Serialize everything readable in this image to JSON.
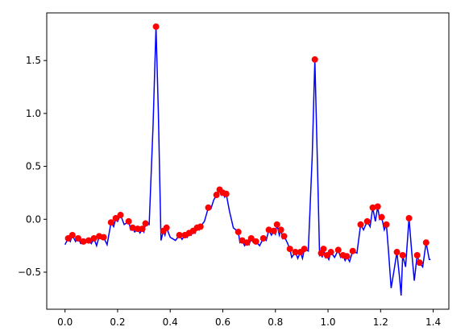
{
  "chart_data": {
    "type": "line",
    "xlim": [
      -0.0695,
      1.4595
    ],
    "ylim": [
      -0.85,
      1.95
    ],
    "xticks": [
      {
        "value": 0,
        "label": "0.0"
      },
      0.2,
      0.4,
      0.6,
      0.8,
      {
        "value": 1,
        "label": "1.0"
      },
      1.2,
      1.4
    ],
    "yticks": [
      {
        "value": -0.5,
        "label": "−0.5"
      },
      {
        "value": 0,
        "label": "0.0"
      },
      0.5,
      {
        "value": 1,
        "label": "1.0"
      },
      1.5
    ],
    "series": [
      {
        "type": "line",
        "color": "#0000ff",
        "x": [
          0.0,
          0.012,
          0.02,
          0.028,
          0.04,
          0.05,
          0.06,
          0.07,
          0.08,
          0.09,
          0.1,
          0.11,
          0.12,
          0.13,
          0.14,
          0.147,
          0.16,
          0.175,
          0.185,
          0.193,
          0.2,
          0.211,
          0.225,
          0.242,
          0.25,
          0.257,
          0.265,
          0.276,
          0.285,
          0.294,
          0.3,
          0.306,
          0.32,
          0.335,
          0.346,
          0.355,
          0.365,
          0.374,
          0.38,
          0.386,
          0.4,
          0.42,
          0.435,
          0.445,
          0.456,
          0.465,
          0.472,
          0.48,
          0.487,
          0.495,
          0.502,
          0.51,
          0.515,
          0.53,
          0.545,
          0.555,
          0.565,
          0.576,
          0.588,
          0.595,
          0.6,
          0.607,
          0.613,
          0.625,
          0.64,
          0.659,
          0.665,
          0.674,
          0.683,
          0.692,
          0.7,
          0.708,
          0.716,
          0.726,
          0.74,
          0.754,
          0.765,
          0.775,
          0.785,
          0.794,
          0.8,
          0.806,
          0.815,
          0.821,
          0.828,
          0.833,
          0.845,
          0.855,
          0.862,
          0.876,
          0.885,
          0.895,
          0.903,
          0.91,
          0.925,
          0.94,
          0.95,
          0.96,
          0.968,
          0.974,
          0.978,
          0.983,
          0.99,
          0.996,
          1.003,
          1.011,
          1.025,
          1.039,
          1.048,
          1.057,
          1.065,
          1.072,
          1.082,
          1.094,
          1.11,
          1.124,
          1.135,
          1.149,
          1.16,
          1.17,
          1.18,
          1.189,
          1.196,
          1.204,
          1.214,
          1.222,
          1.23,
          1.24,
          1.25,
          1.262,
          1.272,
          1.278,
          1.284,
          1.295,
          1.308,
          1.318,
          1.328,
          1.339,
          1.348,
          1.36,
          1.373,
          1.385,
          1.39
        ],
        "values": [
          -0.24,
          -0.18,
          -0.21,
          -0.15,
          -0.21,
          -0.18,
          -0.23,
          -0.21,
          -0.22,
          -0.2,
          -0.23,
          -0.18,
          -0.25,
          -0.16,
          -0.19,
          -0.17,
          -0.24,
          -0.03,
          -0.07,
          0.01,
          -0.02,
          0.04,
          -0.05,
          -0.02,
          -0.1,
          -0.08,
          -0.12,
          -0.09,
          -0.13,
          -0.09,
          -0.12,
          -0.04,
          -0.05,
          0.9,
          1.82,
          1.0,
          -0.2,
          -0.11,
          -0.15,
          -0.08,
          -0.17,
          -0.2,
          -0.15,
          -0.19,
          -0.15,
          -0.17,
          -0.13,
          -0.15,
          -0.11,
          -0.13,
          -0.08,
          -0.1,
          -0.07,
          -0.02,
          0.11,
          0.1,
          0.18,
          0.23,
          0.28,
          0.23,
          0.25,
          0.21,
          0.24,
          0.08,
          -0.08,
          -0.12,
          -0.22,
          -0.2,
          -0.25,
          -0.22,
          -0.24,
          -0.18,
          -0.22,
          -0.21,
          -0.25,
          -0.18,
          -0.2,
          -0.1,
          -0.15,
          -0.11,
          -0.14,
          -0.05,
          -0.15,
          -0.1,
          -0.18,
          -0.16,
          -0.22,
          -0.28,
          -0.36,
          -0.31,
          -0.37,
          -0.31,
          -0.37,
          -0.28,
          -0.3,
          0.6,
          1.51,
          0.5,
          -0.34,
          -0.32,
          -0.36,
          -0.28,
          -0.36,
          -0.34,
          -0.38,
          -0.31,
          -0.36,
          -0.29,
          -0.36,
          -0.34,
          -0.39,
          -0.35,
          -0.4,
          -0.3,
          -0.32,
          -0.05,
          -0.1,
          -0.02,
          -0.07,
          0.11,
          -0.02,
          0.12,
          0.0,
          0.02,
          -0.1,
          -0.05,
          -0.3,
          -0.65,
          -0.5,
          -0.31,
          -0.55,
          -0.72,
          -0.34,
          -0.45,
          0.01,
          -0.3,
          -0.58,
          -0.34,
          -0.41,
          -0.45,
          -0.22,
          -0.38,
          -0.38
        ]
      },
      {
        "type": "scatter",
        "color": "#ff0000",
        "x": [
          0.012,
          0.028,
          0.05,
          0.07,
          0.09,
          0.11,
          0.13,
          0.147,
          0.175,
          0.193,
          0.211,
          0.242,
          0.257,
          0.276,
          0.294,
          0.306,
          0.346,
          0.374,
          0.386,
          0.435,
          0.456,
          0.472,
          0.487,
          0.502,
          0.515,
          0.545,
          0.576,
          0.588,
          0.6,
          0.613,
          0.659,
          0.674,
          0.692,
          0.708,
          0.726,
          0.754,
          0.775,
          0.794,
          0.806,
          0.821,
          0.833,
          0.855,
          0.876,
          0.895,
          0.91,
          0.95,
          0.974,
          0.983,
          0.996,
          1.011,
          1.039,
          1.057,
          1.072,
          1.094,
          1.124,
          1.149,
          1.17,
          1.189,
          1.204,
          1.222,
          1.262,
          1.284,
          1.308,
          1.339,
          1.348,
          1.373
        ],
        "values": [
          -0.18,
          -0.15,
          -0.18,
          -0.21,
          -0.2,
          -0.18,
          -0.16,
          -0.17,
          -0.03,
          0.01,
          0.04,
          -0.02,
          -0.08,
          -0.09,
          -0.09,
          -0.04,
          1.82,
          -0.11,
          -0.08,
          -0.15,
          -0.15,
          -0.13,
          -0.11,
          -0.08,
          -0.07,
          0.11,
          0.23,
          0.28,
          0.25,
          0.24,
          -0.12,
          -0.2,
          -0.22,
          -0.18,
          -0.21,
          -0.18,
          -0.1,
          -0.11,
          -0.05,
          -0.1,
          -0.16,
          -0.28,
          -0.31,
          -0.31,
          -0.28,
          1.51,
          -0.32,
          -0.28,
          -0.34,
          -0.31,
          -0.29,
          -0.34,
          -0.35,
          -0.3,
          -0.05,
          -0.02,
          0.11,
          0.12,
          0.02,
          -0.05,
          -0.31,
          -0.34,
          0.01,
          -0.34,
          -0.41,
          -0.22
        ]
      }
    ]
  }
}
